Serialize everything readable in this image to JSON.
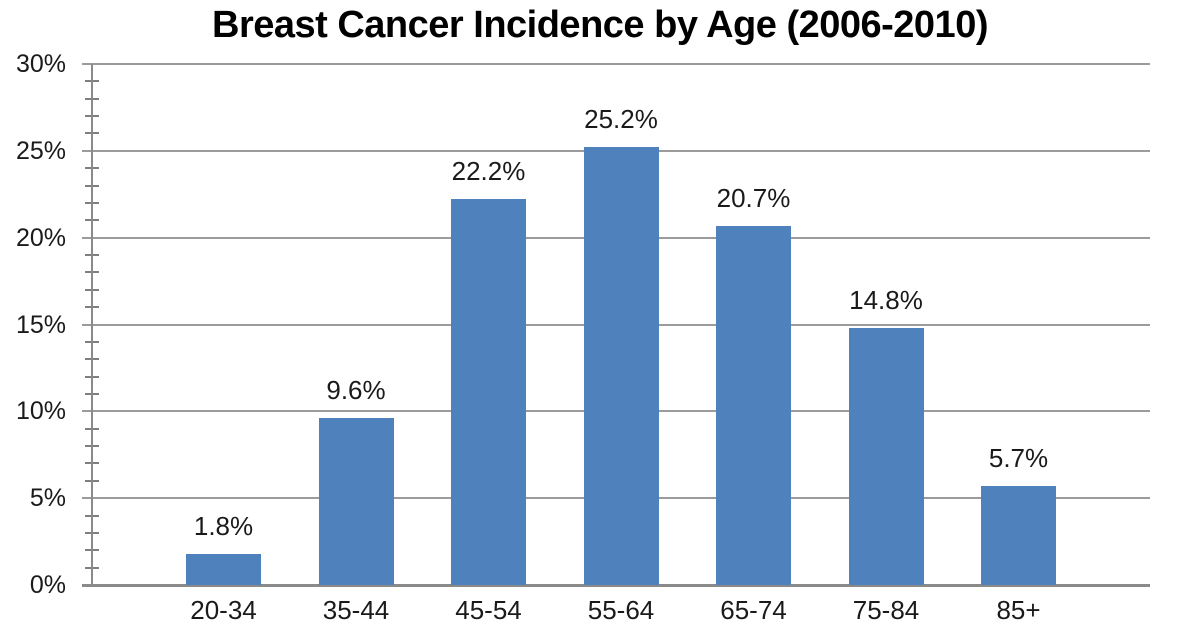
{
  "chart_data": {
    "type": "bar",
    "title": "Breast Cancer Incidence by Age (2006-2010)",
    "categories": [
      "20-34",
      "35-44",
      "45-54",
      "55-64",
      "65-74",
      "75-84",
      "85+"
    ],
    "values": [
      1.8,
      9.6,
      22.2,
      25.2,
      20.7,
      14.8,
      5.7
    ],
    "value_labels": [
      "1.8%",
      "9.6%",
      "22.2%",
      "25.2%",
      "20.7%",
      "14.8%",
      "5.7%"
    ],
    "xlabel": "",
    "ylabel": "",
    "ylim": [
      0,
      30
    ],
    "ytick_step": 5,
    "minor_tick_step": 1,
    "ytick_labels": [
      "0%",
      "5%",
      "10%",
      "15%",
      "20%",
      "25%",
      "30%"
    ],
    "grid": true,
    "legend": "none",
    "colors": {
      "bar_fill": "#4F81BD",
      "gridline": "#9b9b9b",
      "axis": "#8a8a8a",
      "tick": "#7f7f7f",
      "label_text": "#1a1a1a",
      "title_text": "#000000",
      "background": "#ffffff"
    }
  }
}
